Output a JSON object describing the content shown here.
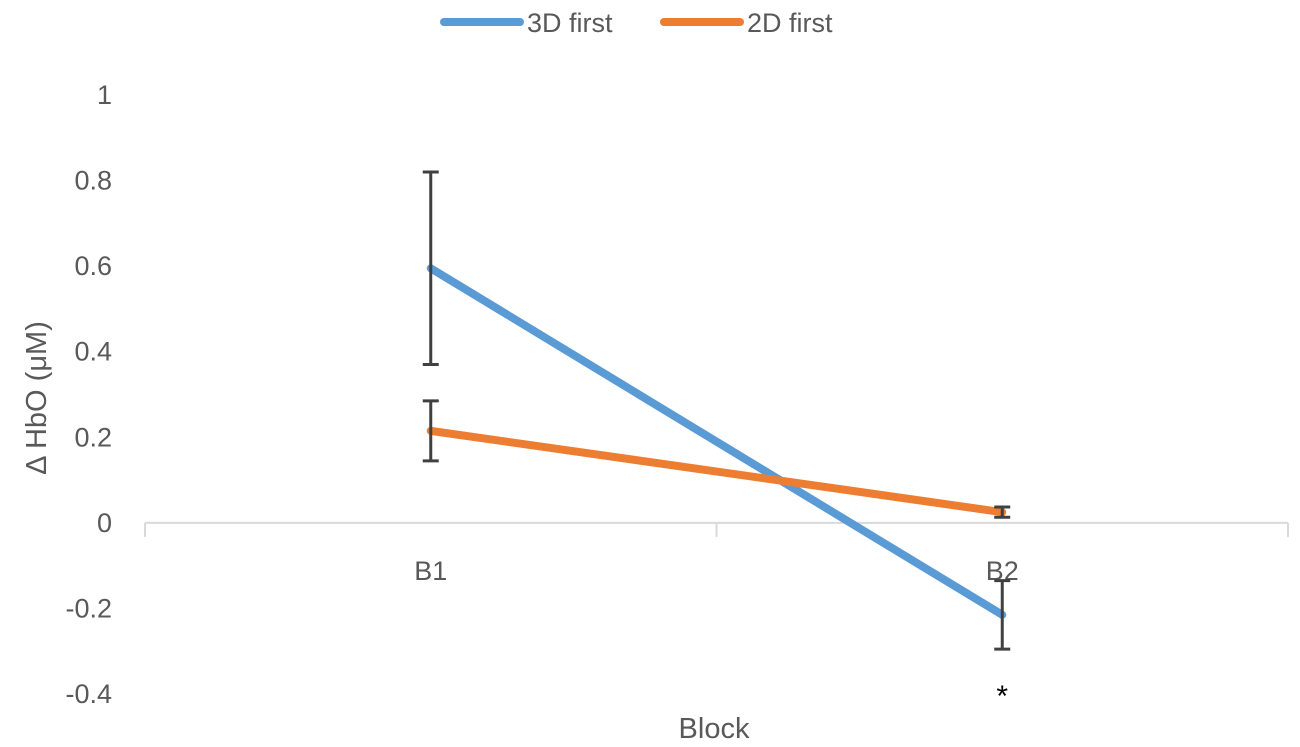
{
  "chart_data": {
    "type": "line",
    "categories": [
      "B1",
      "B2"
    ],
    "series": [
      {
        "name": "3D first",
        "values": [
          0.595,
          -0.215
        ],
        "error": [
          0.225,
          0.08
        ],
        "color": "#5B9BD5"
      },
      {
        "name": "2D first",
        "values": [
          0.215,
          0.025
        ],
        "error": [
          0.07,
          0.012
        ],
        "color": "#ED7D31"
      }
    ],
    "xlabel": "Block",
    "ylabel": "Δ HbO (μM)",
    "ylim": [
      -0.4,
      1
    ],
    "yticks": [
      "-0.4",
      "-0.2",
      "0",
      "0.2",
      "0.4",
      "0.6",
      "0.8",
      "1"
    ],
    "grid": false,
    "legend": "top-center",
    "annotations": [
      {
        "text": "*",
        "category": "B2",
        "y": -0.4
      }
    ],
    "axis_color": "#D9D9D9",
    "errorbar_color": "#404040"
  }
}
